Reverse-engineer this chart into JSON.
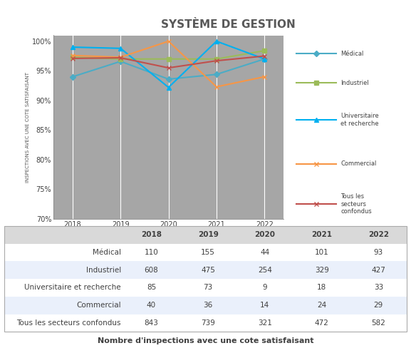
{
  "title": "SYSTÈME DE GESTION",
  "years": [
    2018,
    2019,
    2020,
    2021,
    2022
  ],
  "series": {
    "Médical": {
      "values": [
        94.0,
        96.6,
        93.6,
        94.4,
        97.0
      ],
      "color": "#4BACC6",
      "marker": "D",
      "linewidth": 1.5
    },
    "Industriel": {
      "values": [
        97.3,
        97.0,
        97.0,
        97.0,
        98.4
      ],
      "color": "#9BBB59",
      "marker": "s",
      "linewidth": 1.5
    },
    "Universitaire et recherche": {
      "values": [
        99.0,
        98.8,
        92.2,
        100.0,
        97.0
      ],
      "color": "#00B0F0",
      "marker": "^",
      "linewidth": 1.5
    },
    "Commercial": {
      "values": [
        97.6,
        97.3,
        100.0,
        92.3,
        94.0
      ],
      "color": "#F79646",
      "marker": "x",
      "linewidth": 1.5
    },
    "Tous les secteurs confondus": {
      "values": [
        97.1,
        97.2,
        95.5,
        96.7,
        97.5
      ],
      "color": "#C0504D",
      "marker": "x",
      "linewidth": 1.5
    }
  },
  "ylabel": "INSPECTIONS AVEC UNE COTE SATISFAISANT",
  "ylim": [
    70,
    101
  ],
  "yticks": [
    70,
    75,
    80,
    85,
    90,
    95,
    100
  ],
  "ytick_labels": [
    "70%",
    "75%",
    "80%",
    "85%",
    "90%",
    "95%",
    "100%"
  ],
  "background_color": "#A6A6A6",
  "table_data": {
    "headers": [
      "",
      "2018",
      "2019",
      "2020",
      "2021",
      "2022"
    ],
    "rows": [
      [
        "Médical",
        "110",
        "155",
        "44",
        "101",
        "93"
      ],
      [
        "Industriel",
        "608",
        "475",
        "254",
        "329",
        "427"
      ],
      [
        "Universitaire et recherche",
        "85",
        "73",
        "9",
        "18",
        "33"
      ],
      [
        "Commercial",
        "40",
        "36",
        "14",
        "24",
        "29"
      ],
      [
        "Tous les secteurs confondus",
        "843",
        "739",
        "321",
        "472",
        "582"
      ]
    ]
  },
  "table_caption": "Nombre d'inspections avec une cote satisfaisant",
  "legend_labels": [
    "Médical",
    "Industriel",
    "Universitaire\net recherche",
    "Commercial",
    "Tous les\nsecteurs\nconfondus"
  ],
  "legend_colors": [
    "#4BACC6",
    "#9BBB59",
    "#00B0F0",
    "#F79646",
    "#C0504D"
  ],
  "legend_markers": [
    "D",
    "s",
    "^",
    "x",
    "x"
  ],
  "fig_width": 5.77,
  "fig_height": 4.95,
  "dpi": 100
}
